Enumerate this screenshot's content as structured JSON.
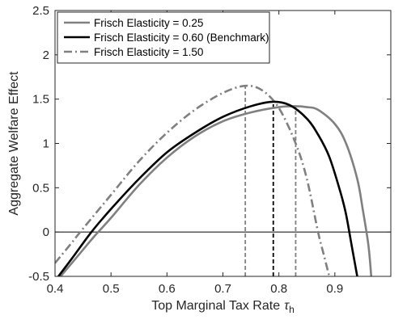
{
  "chart_data": {
    "type": "line",
    "xlabel": "Top Marginal Tax Rate",
    "xlabel_symbol": "τ",
    "xlabel_subscript": "h",
    "ylabel": "Aggregate Welfare Effect",
    "xlim": [
      0.4,
      1.0
    ],
    "ylim": [
      -0.5,
      2.5
    ],
    "xticks": [
      "0.4",
      "0.5",
      "0.6",
      "0.7",
      "0.8",
      "0.9"
    ],
    "yticks": [
      "-0.5",
      "0",
      "0.5",
      "1",
      "1.5",
      "2",
      "2.5"
    ],
    "grid": false,
    "legend_position": "top-left",
    "zero_line": 0,
    "series": [
      {
        "name": "Frisch Elasticity = 0.25",
        "color": "#808080",
        "style": "solid",
        "peak_x": 0.83,
        "x": [
          0.41,
          0.45,
          0.47,
          0.5,
          0.55,
          0.6,
          0.65,
          0.7,
          0.75,
          0.8,
          0.83,
          0.85,
          0.87,
          0.9,
          0.92,
          0.94,
          0.95,
          0.96,
          0.965
        ],
        "y": [
          -0.5,
          -0.2,
          -0.05,
          0.16,
          0.53,
          0.84,
          1.08,
          1.25,
          1.35,
          1.41,
          1.42,
          1.41,
          1.38,
          1.22,
          1.0,
          0.6,
          0.25,
          -0.15,
          -0.5
        ]
      },
      {
        "name": "Frisch Elasticity = 0.60  (Benchmark)",
        "color": "#000000",
        "style": "solid",
        "peak_x": 0.79,
        "x": [
          0.4,
          0.43,
          0.465,
          0.5,
          0.55,
          0.6,
          0.65,
          0.7,
          0.75,
          0.79,
          0.82,
          0.85,
          0.87,
          0.89,
          0.91,
          0.92,
          0.93,
          0.94
        ],
        "y": [
          -0.55,
          -0.3,
          0.0,
          0.26,
          0.6,
          0.9,
          1.12,
          1.3,
          1.42,
          1.47,
          1.43,
          1.28,
          1.1,
          0.85,
          0.45,
          0.2,
          -0.15,
          -0.5
        ]
      },
      {
        "name": "Frisch Elasticity = 1.50",
        "color": "#808080",
        "style": "dashdot",
        "peak_x": 0.74,
        "x": [
          0.4,
          0.43,
          0.445,
          0.5,
          0.55,
          0.6,
          0.65,
          0.7,
          0.74,
          0.77,
          0.8,
          0.83,
          0.85,
          0.87,
          0.88,
          0.89
        ],
        "y": [
          -0.35,
          -0.12,
          0.0,
          0.42,
          0.8,
          1.12,
          1.38,
          1.57,
          1.65,
          1.6,
          1.4,
          1.0,
          0.6,
          0.0,
          -0.25,
          -0.5
        ]
      }
    ]
  }
}
